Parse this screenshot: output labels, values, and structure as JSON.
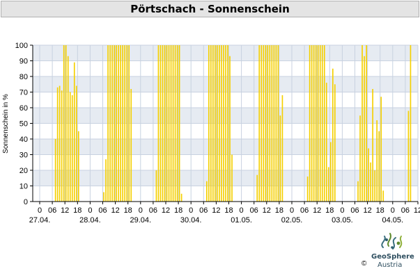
{
  "title": "Pörtschach - Sonnenschein",
  "logo": {
    "name": "GeoSphere",
    "sub": "Austria",
    "copyright": "©",
    "accent": "#2f5d6e"
  },
  "chart_data": {
    "type": "bar",
    "ylabel": "Sonnenschein in %",
    "ylim": [
      0,
      100
    ],
    "yticks": [
      0,
      10,
      20,
      30,
      40,
      50,
      60,
      70,
      80,
      90,
      100
    ],
    "xtick_hour_labels": [
      "0",
      "06",
      "12",
      "18",
      "0",
      "06",
      "12",
      "18",
      "0",
      "06",
      "12",
      "18",
      "0",
      "06",
      "12",
      "18",
      "0",
      "06",
      "12",
      "18",
      "0",
      "06",
      "12",
      "18",
      "0",
      "06",
      "12",
      "18",
      "0",
      "06",
      "12"
    ],
    "date_labels": [
      "27.04.",
      "28.04.",
      "29.04.",
      "30.04.",
      "01.05.",
      "02.05.",
      "03.05.",
      "04.05."
    ],
    "grid": true,
    "bar_color": "#f5d000",
    "band_colors": [
      "#e6ebf2",
      "#ffffff"
    ],
    "days": [
      {
        "date": "27.04.",
        "values": [
          0,
          0,
          0,
          0,
          0,
          0,
          0,
          40,
          73,
          74,
          71,
          100,
          100,
          93,
          70,
          68,
          89,
          74,
          45,
          0,
          0,
          0,
          0,
          0
        ]
      },
      {
        "date": "28.04.",
        "values": [
          0,
          0,
          0,
          0,
          0,
          0,
          6,
          27,
          100,
          100,
          100,
          100,
          100,
          100,
          100,
          100,
          100,
          100,
          100,
          72,
          0,
          0,
          0,
          0
        ]
      },
      {
        "date": "29.04.",
        "values": [
          0,
          0,
          0,
          0,
          0,
          0,
          0,
          20,
          100,
          100,
          100,
          100,
          100,
          100,
          100,
          100,
          100,
          100,
          100,
          5,
          0,
          0,
          0,
          0
        ]
      },
      {
        "date": "30.04.",
        "values": [
          0,
          0,
          0,
          0,
          0,
          0,
          0,
          13,
          100,
          100,
          100,
          100,
          100,
          100,
          100,
          100,
          100,
          100,
          93,
          30,
          0,
          0,
          0,
          0
        ]
      },
      {
        "date": "01.05.",
        "values": [
          0,
          0,
          0,
          0,
          0,
          0,
          0,
          17,
          100,
          100,
          100,
          100,
          100,
          100,
          100,
          100,
          100,
          100,
          55,
          68,
          0,
          0,
          0,
          0
        ]
      },
      {
        "date": "02.05.",
        "values": [
          0,
          0,
          0,
          0,
          0,
          0,
          0,
          16,
          100,
          100,
          100,
          100,
          100,
          100,
          100,
          100,
          76,
          22,
          38,
          85,
          75,
          0,
          0,
          0
        ]
      },
      {
        "date": "03.05.",
        "values": [
          0,
          0,
          0,
          0,
          0,
          0,
          0,
          13,
          55,
          100,
          93,
          100,
          34,
          25,
          72,
          20,
          52,
          45,
          67,
          7,
          0,
          0,
          0,
          0
        ]
      },
      {
        "date": "04.05.",
        "values": [
          0,
          0,
          0,
          0,
          0,
          0,
          0,
          58,
          100
        ]
      }
    ]
  }
}
